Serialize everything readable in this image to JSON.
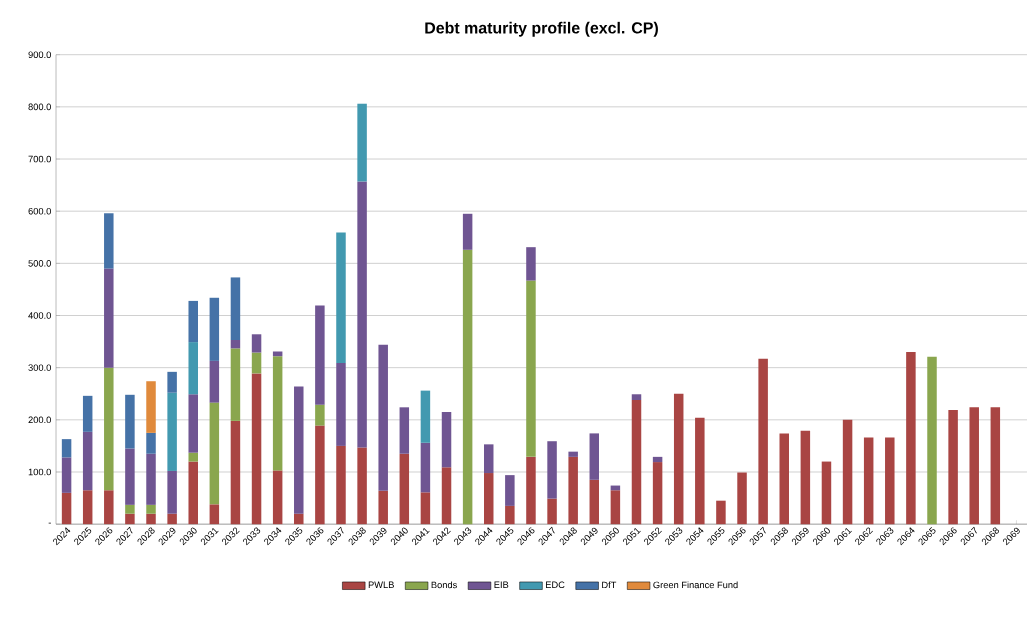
{
  "chart_data": {
    "type": "bar",
    "stacked": true,
    "title": "Debt maturity profile (excl. CP)",
    "categories": [
      "2024",
      "2025",
      "2026",
      "2027",
      "2028",
      "2029",
      "2030",
      "2031",
      "2032",
      "2033",
      "2034",
      "2035",
      "2036",
      "2037",
      "2038",
      "2039",
      "2040",
      "2041",
      "2042",
      "2043",
      "2044",
      "2045",
      "2046",
      "2047",
      "2048",
      "2049",
      "2050",
      "2051",
      "2052",
      "2053",
      "2054",
      "2055",
      "2056",
      "2057",
      "2058",
      "2059",
      "2060",
      "2061",
      "2062",
      "2063",
      "2064",
      "2065",
      "2066",
      "2067",
      "2068",
      "2069"
    ],
    "series": [
      {
        "name": "PWLB",
        "color": "#a94543",
        "values": [
          60,
          65,
          65,
          20,
          20,
          20,
          120,
          38,
          198,
          289,
          103,
          20,
          189,
          150,
          147,
          64,
          135,
          61,
          109,
          null,
          98,
          35,
          129,
          49,
          129,
          85,
          65,
          238,
          119,
          250,
          204,
          45,
          99,
          317,
          174,
          179,
          120,
          200,
          166,
          166,
          330,
          null,
          219,
          224,
          224,
          null
        ]
      },
      {
        "name": "Bonds",
        "color": "#8aa64e",
        "values": [
          null,
          null,
          235,
          17,
          17,
          null,
          17,
          195,
          139,
          40,
          219,
          null,
          40,
          null,
          null,
          null,
          null,
          null,
          null,
          526,
          null,
          null,
          338,
          null,
          null,
          null,
          null,
          null,
          null,
          null,
          null,
          null,
          null,
          null,
          null,
          null,
          null,
          null,
          null,
          null,
          null,
          321,
          null,
          null,
          null,
          null
        ]
      },
      {
        "name": "EIB",
        "color": "#6f5592",
        "values": [
          68,
          112,
          190,
          108,
          98,
          82,
          112,
          80,
          16,
          35,
          9,
          244,
          190,
          159,
          510,
          280,
          89,
          95,
          106,
          69,
          55,
          59,
          64,
          110,
          10,
          89,
          9,
          11,
          10,
          null,
          null,
          null,
          null,
          null,
          null,
          null,
          null,
          null,
          null,
          null,
          null,
          null,
          null,
          null,
          null,
          null
        ]
      },
      {
        "name": "EDC",
        "color": "#4299b0",
        "values": [
          null,
          null,
          null,
          null,
          null,
          150,
          100,
          null,
          null,
          null,
          null,
          null,
          null,
          250,
          149,
          null,
          null,
          100,
          null,
          null,
          null,
          null,
          null,
          null,
          null,
          null,
          null,
          null,
          null,
          null,
          null,
          null,
          null,
          null,
          null,
          null,
          null,
          null,
          null,
          null,
          null,
          null,
          null,
          null,
          null,
          null
        ]
      },
      {
        "name": "DfT",
        "color": "#4572a7",
        "values": [
          35,
          69,
          106,
          103,
          40,
          40,
          79,
          121,
          120,
          null,
          null,
          null,
          null,
          null,
          null,
          null,
          null,
          null,
          null,
          null,
          null,
          null,
          null,
          null,
          null,
          null,
          null,
          null,
          null,
          null,
          null,
          null,
          null,
          null,
          null,
          null,
          null,
          null,
          null,
          null,
          null,
          null,
          null,
          null,
          null,
          null
        ]
      },
      {
        "name": "Green Finance Fund",
        "color": "#e08a3c",
        "values": [
          null,
          null,
          null,
          null,
          99,
          null,
          null,
          null,
          null,
          null,
          null,
          null,
          null,
          null,
          null,
          null,
          null,
          null,
          null,
          null,
          null,
          null,
          null,
          null,
          null,
          null,
          null,
          null,
          null,
          null,
          null,
          null,
          null,
          null,
          null,
          null,
          null,
          null,
          null,
          null,
          null,
          null,
          null,
          null,
          null,
          null
        ]
      }
    ],
    "ylim": [
      0,
      900
    ],
    "yticks": [
      {
        "value": 0,
        "label": "-"
      },
      {
        "value": 100,
        "label": "100.0"
      },
      {
        "value": 200,
        "label": "200.0"
      },
      {
        "value": 300,
        "label": "300.0"
      },
      {
        "value": 400,
        "label": "400.0"
      },
      {
        "value": 500,
        "label": "500.0"
      },
      {
        "value": 600,
        "label": "600.0"
      },
      {
        "value": 700,
        "label": "700.0"
      },
      {
        "value": 800,
        "label": "800.0"
      },
      {
        "value": 900,
        "label": "900.0"
      }
    ],
    "grid": "y",
    "legend": "bottom"
  }
}
